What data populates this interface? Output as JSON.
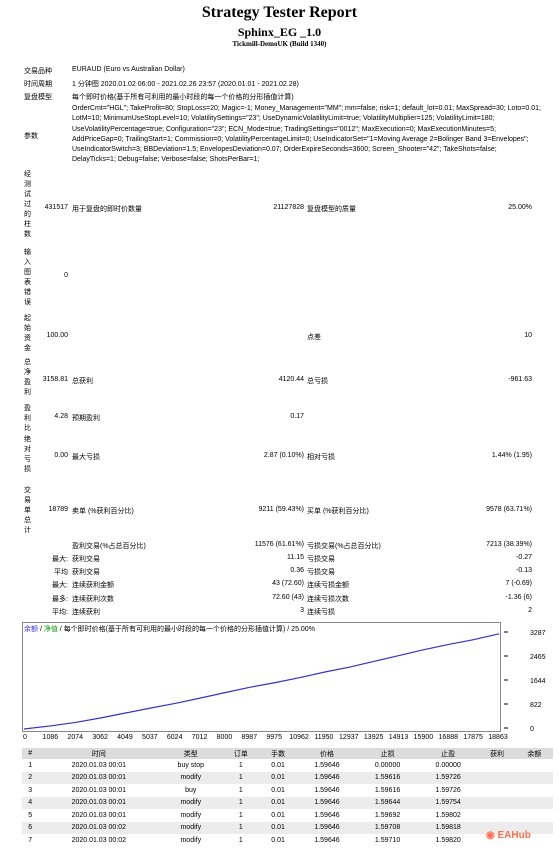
{
  "header": {
    "title": "Strategy Tester Report",
    "ea_name": "Sphinx_EG _1.0",
    "server": "Tickmill-DemoUK (Build 1340)"
  },
  "info": {
    "symbol_label": "交易品种",
    "symbol_value": "EURAUD (Euro vs Australian Dollar)",
    "period_label": "时间周期",
    "period_value": "1 分钟图 2020.01.02 06:00 - 2021.02.26 23:57 (2020.01.01 - 2021.02.28)",
    "model_label": "复盘模型",
    "model_value": "每个即时价格(基于所有可利用的最小时段的每一个价格的分形插值计算)",
    "params_label": "参数",
    "params_value": "OrderCmt=\"HGL\"; TakeProfit=80; StopLoss=20; Magic=-1; Money_Management=\"MM\"; mm=false; risk=1; default_lot=0.01; MaxSpread=30; Loto=0.01; LotM=10; MinimumUseStopLevel=10; VolatilitySettings=\"23\"; UseDynamicVolatilityLimit=true; VolatilityMultiplier=125; VolatilityLimit=180; UseVolatilityPercentage=true; Configuration=\"23\"; ECN_Mode=true; TradingSettings=\"0012\"; MaxExecution=0; MaxExecutionMinutes=5; AddPriceGap=0; TrailingStart=1; Commission=0; VolatilityPercentageLimit=0; UseIndicatorSet=\"1=Moving Average 2=Bolinger Band 3=Envelopes\"; UseIndicatorSwitch=3; BBDeviation=1.5; EnvelopesDeviation=0.07; OrderExpireSeconds=3600; Screen_Shooter=\"42\"; TakeShots=false; DelayTicks=1; Debug=false; Verbose=false; ShotsPerBar=1;"
  },
  "stats": {
    "bars_label": "经测试过的柱数",
    "bars_value": "431517",
    "ticks_label": "用于复盘的即时价数量",
    "ticks_value": "21127828",
    "quality_label": "复盘模型的质量",
    "quality_value": "25.00%",
    "mismatch_label": "输入图表错误",
    "mismatch_value": "0",
    "deposit_label": "起始资金",
    "deposit_value": "100.00",
    "spread_label": "点差",
    "spread_value": "10",
    "netprofit_label": "总净盈利",
    "netprofit_value": "3158.81",
    "grossprofit_label": "总获利",
    "grossprofit_value": "4120.44",
    "grossloss_label": "总亏损",
    "grossloss_value": "-961.63",
    "pf_label": "盈利比",
    "pf_value": "4.28",
    "expected_label": "预期盈利",
    "expected_value": "0.17",
    "dd_label": "绝对亏损",
    "dd_value": "0.00",
    "maxdd_label": "最大亏损",
    "maxdd_value": "2.87 (0.10%)",
    "reldd_label": "相对亏损",
    "reldd_value": "1.44% (1.95)",
    "trades_label": "交易单总计",
    "trades_value": "18789",
    "short_label": "卖单 (%获利百分比)",
    "short_value": "9211 (59.43%)",
    "long_label": "买单 (%获利百分比)",
    "long_value": "9578 (63.71%)",
    "profit_trades_label": "盈利交易(%占总百分比)",
    "profit_trades_value": "11576 (61.61%)",
    "loss_trades_label": "亏损交易(%占总百分比)",
    "loss_trades_value": "7213 (38.39%)",
    "max_label": "最大:",
    "avg_label": "平均",
    "max_profit_label": "获利交易",
    "max_profit_value": "11.15",
    "max_loss_label": "亏损交易",
    "max_loss_value": "-0.27",
    "avg_profit_label": "获利交易",
    "avg_profit_value": "0.36",
    "avg_loss_label": "亏损交易",
    "avg_loss_value": "-0.13",
    "max2_label": "最大:",
    "cons_win_label": "连续获利金额",
    "cons_win_value": "43 (72.60)",
    "cons_loss_label": "连续亏损金额",
    "cons_loss_value": "7 (-0.69)",
    "max3_label": "最多:",
    "cons_win2_label": "连续获利次数",
    "cons_win2_value": "72.60 (43)",
    "cons_loss2_label": "连续亏损次数",
    "cons_loss2_value": "-1.36 (6)",
    "avg2_label": "平均:",
    "avg_win_label": "连续获利",
    "avg_win_value": "3",
    "avg_loss2_label": "连续亏损",
    "avg_loss2_value": "2"
  },
  "chart_legend": {
    "balance": "余额",
    "equity": "净值",
    "sep": " / ",
    "desc": "每个即时价格(基于所有可利用的最小时段的每一个价格的分形插值计算) / 25.00%"
  },
  "chart_data": {
    "type": "line",
    "title": "",
    "xlabel": "",
    "ylabel": "",
    "x_ticks": [
      "0",
      "1086",
      "2074",
      "3062",
      "4049",
      "5037",
      "6024",
      "7012",
      "8000",
      "8987",
      "9975",
      "10962",
      "11950",
      "12937",
      "13925",
      "14913",
      "15900",
      "16888",
      "17875",
      "18863"
    ],
    "y_ticks": [
      "3287",
      "2465",
      "1644",
      "822",
      "0"
    ],
    "ylim": [
      0,
      3287
    ],
    "xlim": [
      0,
      18863
    ],
    "series": [
      {
        "name": "余额",
        "color": "#3333cc",
        "x": [
          0,
          1086,
          2074,
          3062,
          4049,
          5037,
          6024,
          7012,
          8000,
          8987,
          9975,
          10962,
          11950,
          12937,
          13925,
          14913,
          15900,
          16888,
          17875,
          18863
        ],
        "values": [
          0,
          110,
          230,
          380,
          550,
          720,
          880,
          1060,
          1250,
          1430,
          1590,
          1760,
          1950,
          2120,
          2320,
          2520,
          2720,
          2900,
          3060,
          3258
        ]
      }
    ]
  },
  "orders": {
    "headers": [
      "#",
      "时间",
      "类型",
      "订单",
      "手数",
      "价格",
      "止损",
      "止盈",
      "获利",
      "余额"
    ],
    "rows": [
      [
        "1",
        "2020.01.03 00:01",
        "buy stop",
        "1",
        "0.01",
        "1.59646",
        "0.00000",
        "0.00000",
        "",
        ""
      ],
      [
        "2",
        "2020.01.03 00:01",
        "modify",
        "1",
        "0.01",
        "1.59646",
        "1.59616",
        "1.59726",
        "",
        ""
      ],
      [
        "3",
        "2020.01.03 00:01",
        "buy",
        "1",
        "0.01",
        "1.59646",
        "1.59616",
        "1.59726",
        "",
        ""
      ],
      [
        "4",
        "2020.01.03 00:01",
        "modify",
        "1",
        "0.01",
        "1.59646",
        "1.59644",
        "1.59754",
        "",
        ""
      ],
      [
        "5",
        "2020.01.03 00:01",
        "modify",
        "1",
        "0.01",
        "1.59646",
        "1.59692",
        "1.59802",
        "",
        ""
      ],
      [
        "6",
        "2020.01.03 00:02",
        "modify",
        "1",
        "0.01",
        "1.59646",
        "1.59708",
        "1.59818",
        "",
        ""
      ],
      [
        "7",
        "2020.01.03 00:02",
        "modify",
        "1",
        "0.01",
        "1.59646",
        "1.59710",
        "1.59820",
        "",
        ""
      ]
    ]
  },
  "watermark": "EAHub"
}
